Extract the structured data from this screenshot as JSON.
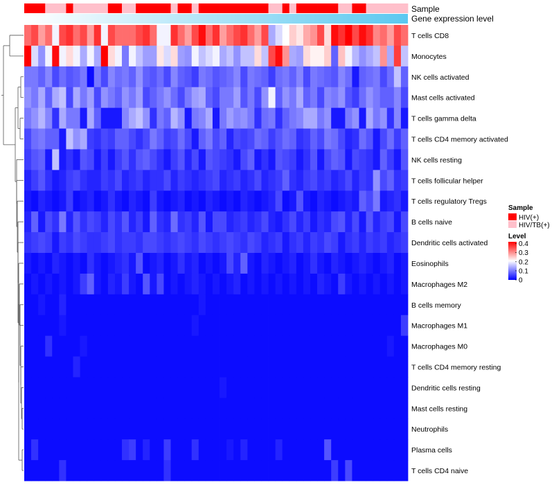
{
  "chart_data": {
    "type": "heatmap",
    "title": "",
    "annotation_rows": [
      {
        "name": "Sample"
      },
      {
        "name": "Gene expression level"
      }
    ],
    "sample_groups": [
      "HIV(+)",
      "HIV(+)",
      "HIV(+)",
      "HIV/TB(+)",
      "HIV/TB(+)",
      "HIV/TB(+)",
      "HIV(+)",
      "HIV/TB(+)",
      "HIV/TB(+)",
      "HIV/TB(+)",
      "HIV/TB(+)",
      "HIV/TB(+)",
      "HIV(+)",
      "HIV(+)",
      "HIV/TB(+)",
      "HIV/TB(+)",
      "HIV(+)",
      "HIV(+)",
      "HIV(+)",
      "HIV(+)",
      "HIV(+)",
      "HIV/TB(+)",
      "HIV(+)",
      "HIV(+)",
      "HIV/TB(+)",
      "HIV(+)",
      "HIV(+)",
      "HIV(+)",
      "HIV(+)",
      "HIV(+)",
      "HIV(+)",
      "HIV(+)",
      "HIV(+)",
      "HIV(+)",
      "HIV(+)",
      "HIV/TB(+)",
      "HIV/TB(+)",
      "HIV(+)",
      "HIV/TB(+)",
      "HIV(+)",
      "HIV(+)",
      "HIV(+)",
      "HIV(+)",
      "HIV(+)",
      "HIV(+)",
      "HIV/TB(+)",
      "HIV/TB(+)",
      "HIV(+)",
      "HIV(+)",
      "HIV/TB(+)",
      "HIV/TB(+)",
      "HIV/TB(+)",
      "HIV/TB(+)",
      "HIV/TB(+)",
      "HIV/TB(+)"
    ],
    "rows": [
      "T cells CD8",
      "Monocytes",
      "NK cells activated",
      "Mast cells activated",
      "T cells gamma delta",
      "T cells CD4 memory activated",
      "NK cells resting",
      "T cells follicular helper",
      "T cells regulatory  Tregs",
      "B cells naive",
      "Dendritic cells activated",
      "Eosinophils",
      "Macrophages M2",
      "B cells memory",
      "Macrophages M1",
      "Macrophages M0",
      "T cells CD4 memory resting",
      "Dendritic cells resting",
      "Mast cells resting",
      "Neutrophils",
      "Plasma cells",
      "T cells CD4 naive"
    ],
    "values": [
      [
        0.33,
        0.36,
        0.29,
        0.33,
        0.2,
        0.36,
        0.38,
        0.33,
        0.36,
        0.29,
        0.38,
        0.2,
        0.36,
        0.33,
        0.33,
        0.33,
        0.36,
        0.38,
        0.33,
        0.2,
        0.2,
        0.38,
        0.33,
        0.29,
        0.36,
        0.41,
        0.33,
        0.38,
        0.29,
        0.33,
        0.36,
        0.38,
        0.33,
        0.29,
        0.36,
        0.14,
        0.18,
        0.21,
        0.25,
        0.23,
        0.28,
        0.3,
        0.36,
        0.24,
        0.41,
        0.38,
        0.42,
        0.36,
        0.41,
        0.38,
        0.31,
        0.33,
        0.29,
        0.36,
        0.33
      ],
      [
        0.42,
        0.18,
        0.12,
        0.2,
        0.41,
        0.2,
        0.24,
        0.2,
        0.14,
        0.2,
        0.14,
        0.42,
        0.24,
        0.2,
        0.1,
        0.2,
        0.16,
        0.13,
        0.13,
        0.23,
        0.18,
        0.24,
        0.13,
        0.12,
        0.2,
        0.16,
        0.18,
        0.2,
        0.14,
        0.16,
        0.12,
        0.16,
        0.16,
        0.24,
        0.16,
        0.36,
        0.41,
        0.3,
        0.14,
        0.13,
        0.24,
        0.22,
        0.22,
        0.25,
        0.08,
        0.26,
        0.2,
        0.15,
        0.12,
        0.14,
        0.16,
        0.3,
        0.14,
        0.37,
        0.16
      ],
      [
        0.1,
        0.1,
        0.08,
        0.11,
        0.06,
        0.09,
        0.07,
        0.08,
        0.1,
        0.01,
        0.1,
        0.06,
        0.11,
        0.09,
        0.1,
        0.08,
        0.12,
        0.08,
        0.07,
        0.09,
        0.06,
        0.11,
        0.08,
        0.07,
        0.05,
        0.1,
        0.09,
        0.07,
        0.08,
        0.09,
        0.11,
        0.06,
        0.1,
        0.09,
        0.08,
        0.05,
        0.09,
        0.1,
        0.08,
        0.11,
        0.06,
        0.1,
        0.09,
        0.08,
        0.07,
        0.11,
        0.09,
        0.02,
        0.08,
        0.09,
        0.1,
        0.06,
        0.09,
        0.16,
        0.08
      ],
      [
        0.12,
        0.1,
        0.14,
        0.08,
        0.14,
        0.16,
        0.06,
        0.14,
        0.1,
        0.13,
        0.06,
        0.12,
        0.1,
        0.08,
        0.12,
        0.1,
        0.13,
        0.06,
        0.08,
        0.1,
        0.12,
        0.09,
        0.06,
        0.1,
        0.13,
        0.14,
        0.08,
        0.06,
        0.1,
        0.1,
        0.13,
        0.07,
        0.1,
        0.06,
        0.12,
        0.2,
        0.08,
        0.12,
        0.1,
        0.14,
        0.08,
        0.1,
        0.06,
        0.11,
        0.1,
        0.12,
        0.07,
        0.05,
        0.09,
        0.12,
        0.1,
        0.08,
        0.08,
        0.11,
        0.06
      ],
      [
        0.1,
        0.12,
        0.15,
        0.11,
        0.04,
        0.14,
        0.1,
        0.1,
        0.02,
        0.14,
        0.08,
        0.02,
        0.02,
        0.02,
        0.11,
        0.14,
        0.16,
        0.12,
        0.04,
        0.1,
        0.08,
        0.15,
        0.12,
        0.02,
        0.1,
        0.11,
        0.14,
        0.02,
        0.1,
        0.13,
        0.11,
        0.12,
        0.1,
        0.04,
        0.09,
        0.1,
        0.04,
        0.08,
        0.1,
        0.11,
        0.14,
        0.14,
        0.1,
        0.12,
        0.02,
        0.02,
        0.1,
        0.12,
        0.02,
        0.14,
        0.1,
        0.12,
        0.04,
        0.11,
        0.02
      ],
      [
        0.06,
        0.09,
        0.1,
        0.08,
        0.08,
        0.02,
        0.16,
        0.12,
        0.14,
        0.05,
        0.04,
        0.06,
        0.05,
        0.08,
        0.08,
        0.06,
        0.04,
        0.06,
        0.1,
        0.08,
        0.05,
        0.06,
        0.09,
        0.06,
        0.02,
        0.08,
        0.1,
        0.06,
        0.08,
        0.03,
        0.06,
        0.05,
        0.06,
        0.09,
        0.08,
        0.05,
        0.07,
        0.09,
        0.08,
        0.04,
        0.05,
        0.08,
        0.06,
        0.1,
        0.09,
        0.06,
        0.03,
        0.04,
        0.09,
        0.07,
        0.02,
        0.06,
        0.09,
        0.05,
        0.08
      ],
      [
        0.05,
        0.07,
        0.08,
        0.02,
        0.16,
        0.02,
        0.04,
        0.02,
        0.07,
        0.06,
        0.02,
        0.05,
        0.02,
        0.05,
        0.07,
        0.04,
        0.07,
        0.08,
        0.06,
        0.04,
        0.02,
        0.05,
        0.07,
        0.03,
        0.06,
        0.02,
        0.07,
        0.06,
        0.05,
        0.04,
        0.02,
        0.06,
        0.08,
        0.02,
        0.04,
        0.02,
        0.07,
        0.06,
        0.05,
        0.02,
        0.04,
        0.07,
        0.02,
        0.06,
        0.08,
        0.07,
        0.02,
        0.06,
        0.05,
        0.04,
        0.02,
        0.08,
        0.05,
        0.02,
        0.07
      ],
      [
        0.03,
        0.05,
        0.07,
        0.04,
        0.02,
        0.03,
        0.05,
        0.06,
        0.04,
        0.03,
        0.03,
        0.05,
        0.04,
        0.06,
        0.03,
        0.04,
        0.05,
        0.03,
        0.04,
        0.04,
        0.06,
        0.03,
        0.05,
        0.04,
        0.03,
        0.04,
        0.05,
        0.06,
        0.03,
        0.04,
        0.05,
        0.03,
        0.04,
        0.06,
        0.03,
        0.04,
        0.05,
        0.08,
        0.04,
        0.03,
        0.05,
        0.06,
        0.04,
        0.05,
        0.03,
        0.04,
        0.06,
        0.03,
        0.05,
        0.04,
        0.12,
        0.06,
        0.08,
        0.04,
        0.05
      ],
      [
        0.02,
        0.01,
        0.03,
        0.02,
        0.01,
        0.02,
        0.05,
        0.01,
        0.02,
        0.03,
        0.01,
        0.02,
        0.04,
        0.02,
        0.01,
        0.03,
        0.02,
        0.01,
        0.05,
        0.02,
        0.01,
        0.02,
        0.03,
        0.01,
        0.02,
        0.01,
        0.03,
        0.02,
        0.01,
        0.02,
        0.01,
        0.03,
        0.02,
        0.01,
        0.02,
        0.03,
        0.06,
        0.01,
        0.02,
        0.07,
        0.02,
        0.01,
        0.03,
        0.02,
        0.01,
        0.02,
        0.03,
        0.02,
        0.08,
        0.06,
        0.1,
        0.02,
        0.03,
        0.04,
        0.02
      ],
      [
        0.03,
        0.08,
        0.02,
        0.06,
        0.04,
        0.1,
        0.03,
        0.07,
        0.04,
        0.06,
        0.05,
        0.03,
        0.06,
        0.04,
        0.07,
        0.03,
        0.05,
        0.02,
        0.08,
        0.04,
        0.03,
        0.09,
        0.04,
        0.05,
        0.03,
        0.07,
        0.02,
        0.06,
        0.06,
        0.03,
        0.04,
        0.05,
        0.03,
        0.04,
        0.06,
        0.03,
        0.02,
        0.04,
        0.06,
        0.03,
        0.05,
        0.02,
        0.04,
        0.03,
        0.06,
        0.07,
        0.03,
        0.06,
        0.02,
        0.07,
        0.03,
        0.05,
        0.06,
        0.02,
        0.06
      ],
      [
        0.04,
        0.05,
        0.06,
        0.05,
        0.02,
        0.05,
        0.04,
        0.06,
        0.05,
        0.04,
        0.04,
        0.05,
        0.06,
        0.04,
        0.05,
        0.05,
        0.04,
        0.06,
        0.06,
        0.05,
        0.04,
        0.05,
        0.06,
        0.05,
        0.04,
        0.06,
        0.05,
        0.04,
        0.05,
        0.06,
        0.05,
        0.04,
        0.06,
        0.05,
        0.03,
        0.04,
        0.05,
        0.02,
        0.04,
        0.05,
        0.03,
        0.05,
        0.04,
        0.06,
        0.05,
        0.02,
        0.04,
        0.05,
        0.03,
        0.05,
        0.04,
        0.05,
        0.03,
        0.04,
        0.05
      ],
      [
        0.02,
        0.01,
        0.02,
        0.01,
        0.03,
        0.02,
        0.01,
        0.02,
        0.01,
        0.04,
        0.02,
        0.01,
        0.02,
        0.03,
        0.04,
        0.02,
        0.07,
        0.01,
        0.02,
        0.03,
        0.01,
        0.02,
        0.04,
        0.02,
        0.03,
        0.01,
        0.02,
        0.01,
        0.02,
        0.06,
        0.03,
        0.08,
        0.02,
        0.01,
        0.03,
        0.02,
        0.01,
        0.02,
        0.03,
        0.01,
        0.02,
        0.04,
        0.02,
        0.01,
        0.03,
        0.02,
        0.01,
        0.02,
        0.03,
        0.02,
        0.01,
        0.02,
        0.03,
        0.01,
        0.02
      ],
      [
        0.01,
        0.02,
        0.01,
        0.02,
        0.01,
        0.02,
        0.01,
        0.02,
        0.05,
        0.08,
        0.02,
        0.01,
        0.03,
        0.02,
        0.05,
        0.02,
        0.01,
        0.07,
        0.02,
        0.06,
        0.01,
        0.02,
        0.01,
        0.02,
        0.03,
        0.02,
        0.01,
        0.02,
        0.01,
        0.02,
        0.03,
        0.01,
        0.02,
        0.01,
        0.02,
        0.01,
        0.02,
        0.01,
        0.02,
        0.01,
        0.02,
        0.01,
        0.03,
        0.02,
        0.01,
        0.05,
        0.02,
        0.01,
        0.02,
        0.01,
        0.02,
        0.01,
        0.02,
        0.01,
        0.02
      ],
      [
        0.01,
        0.01,
        0.02,
        0.01,
        0.01,
        0.03,
        0.01,
        0.01,
        0.01,
        0.01,
        0.01,
        0.01,
        0.01,
        0.01,
        0.01,
        0.01,
        0.01,
        0.01,
        0.01,
        0.01,
        0.01,
        0.01,
        0.01,
        0.01,
        0.01,
        0.02,
        0.01,
        0.01,
        0.01,
        0.01,
        0.01,
        0.01,
        0.01,
        0.01,
        0.01,
        0.01,
        0.01,
        0.01,
        0.01,
        0.01,
        0.01,
        0.01,
        0.01,
        0.01,
        0.01,
        0.01,
        0.01,
        0.01,
        0.01,
        0.01,
        0.01,
        0.01,
        0.01,
        0.01,
        0.01
      ],
      [
        0.01,
        0.01,
        0.01,
        0.01,
        0.01,
        0.02,
        0.01,
        0.01,
        0.01,
        0.01,
        0.01,
        0.01,
        0.01,
        0.01,
        0.01,
        0.01,
        0.01,
        0.01,
        0.01,
        0.01,
        0.01,
        0.01,
        0.01,
        0.01,
        0.02,
        0.01,
        0.01,
        0.01,
        0.01,
        0.01,
        0.01,
        0.01,
        0.01,
        0.01,
        0.01,
        0.01,
        0.01,
        0.01,
        0.01,
        0.01,
        0.01,
        0.01,
        0.01,
        0.01,
        0.01,
        0.01,
        0.01,
        0.01,
        0.01,
        0.01,
        0.01,
        0.01,
        0.01,
        0.01,
        0.05
      ],
      [
        0.01,
        0.01,
        0.01,
        0.04,
        0.01,
        0.01,
        0.01,
        0.01,
        0.02,
        0.01,
        0.01,
        0.01,
        0.01,
        0.01,
        0.01,
        0.01,
        0.01,
        0.01,
        0.01,
        0.01,
        0.01,
        0.01,
        0.01,
        0.01,
        0.01,
        0.01,
        0.01,
        0.01,
        0.01,
        0.01,
        0.01,
        0.01,
        0.01,
        0.01,
        0.01,
        0.01,
        0.01,
        0.01,
        0.01,
        0.01,
        0.01,
        0.01,
        0.01,
        0.01,
        0.01,
        0.01,
        0.01,
        0.01,
        0.01,
        0.01,
        0.01,
        0.01,
        0.02,
        0.01,
        0.01
      ],
      [
        0.01,
        0.01,
        0.01,
        0.01,
        0.01,
        0.01,
        0.01,
        0.03,
        0.01,
        0.01,
        0.01,
        0.01,
        0.01,
        0.01,
        0.01,
        0.01,
        0.01,
        0.01,
        0.01,
        0.01,
        0.01,
        0.01,
        0.01,
        0.01,
        0.01,
        0.01,
        0.01,
        0.01,
        0.01,
        0.01,
        0.01,
        0.01,
        0.01,
        0.01,
        0.01,
        0.01,
        0.01,
        0.01,
        0.01,
        0.01,
        0.01,
        0.01,
        0.01,
        0.01,
        0.01,
        0.01,
        0.01,
        0.01,
        0.01,
        0.01,
        0.01,
        0.01,
        0.01,
        0.01,
        0.01
      ],
      [
        0.01,
        0.01,
        0.01,
        0.01,
        0.01,
        0.01,
        0.01,
        0.01,
        0.01,
        0.01,
        0.01,
        0.01,
        0.01,
        0.01,
        0.01,
        0.01,
        0.01,
        0.01,
        0.01,
        0.01,
        0.01,
        0.01,
        0.01,
        0.01,
        0.01,
        0.01,
        0.01,
        0.01,
        0.02,
        0.01,
        0.01,
        0.01,
        0.01,
        0.01,
        0.01,
        0.01,
        0.01,
        0.01,
        0.01,
        0.01,
        0.01,
        0.01,
        0.01,
        0.01,
        0.01,
        0.01,
        0.01,
        0.01,
        0.01,
        0.01,
        0.01,
        0.01,
        0.01,
        0.01,
        0.01
      ],
      [
        0.01,
        0.01,
        0.01,
        0.01,
        0.01,
        0.01,
        0.01,
        0.01,
        0.01,
        0.01,
        0.01,
        0.01,
        0.01,
        0.01,
        0.01,
        0.01,
        0.01,
        0.01,
        0.01,
        0.01,
        0.01,
        0.01,
        0.01,
        0.01,
        0.01,
        0.01,
        0.01,
        0.01,
        0.01,
        0.01,
        0.01,
        0.01,
        0.01,
        0.01,
        0.01,
        0.01,
        0.01,
        0.01,
        0.01,
        0.01,
        0.01,
        0.01,
        0.01,
        0.01,
        0.01,
        0.01,
        0.01,
        0.01,
        0.01,
        0.01,
        0.01,
        0.01,
        0.01,
        0.01,
        0.01
      ],
      [
        0.01,
        0.01,
        0.01,
        0.01,
        0.01,
        0.01,
        0.01,
        0.01,
        0.01,
        0.01,
        0.01,
        0.01,
        0.01,
        0.01,
        0.01,
        0.01,
        0.01,
        0.01,
        0.01,
        0.01,
        0.01,
        0.01,
        0.01,
        0.01,
        0.01,
        0.01,
        0.01,
        0.01,
        0.01,
        0.01,
        0.01,
        0.01,
        0.01,
        0.01,
        0.01,
        0.01,
        0.01,
        0.01,
        0.01,
        0.01,
        0.01,
        0.01,
        0.01,
        0.01,
        0.01,
        0.01,
        0.01,
        0.01,
        0.01,
        0.01,
        0.01,
        0.01,
        0.01,
        0.01,
        0.01
      ],
      [
        0.01,
        0.04,
        0.01,
        0.01,
        0.01,
        0.01,
        0.01,
        0.01,
        0.01,
        0.01,
        0.01,
        0.01,
        0.01,
        0.01,
        0.04,
        0.05,
        0.01,
        0.03,
        0.01,
        0.01,
        0.05,
        0.01,
        0.01,
        0.01,
        0.04,
        0.01,
        0.01,
        0.01,
        0.01,
        0.02,
        0.01,
        0.03,
        0.01,
        0.01,
        0.01,
        0.01,
        0.03,
        0.01,
        0.01,
        0.01,
        0.01,
        0.01,
        0.01,
        0.07,
        0.01,
        0.01,
        0.01,
        0.01,
        0.01,
        0.01,
        0.01,
        0.01,
        0.01,
        0.01,
        0.01
      ],
      [
        0.01,
        0.01,
        0.01,
        0.01,
        0.01,
        0.04,
        0.01,
        0.01,
        0.01,
        0.01,
        0.01,
        0.01,
        0.01,
        0.01,
        0.01,
        0.01,
        0.01,
        0.01,
        0.01,
        0.01,
        0.04,
        0.01,
        0.01,
        0.01,
        0.01,
        0.01,
        0.01,
        0.01,
        0.01,
        0.01,
        0.01,
        0.01,
        0.01,
        0.01,
        0.01,
        0.01,
        0.01,
        0.01,
        0.01,
        0.01,
        0.01,
        0.01,
        0.01,
        0.01,
        0.05,
        0.01,
        0.06,
        0.01,
        0.01,
        0.01,
        0.01,
        0.01,
        0.01,
        0.01,
        0.01
      ]
    ],
    "color_scale": {
      "min": 0,
      "max": 0.42,
      "low": "#0000FF",
      "mid": "#FFFFFF",
      "high": "#FF0000",
      "mid_value": 0.21
    },
    "sample_colors": {
      "HIV(+)": "#FF0000",
      "HIV/TB(+)": "#FFC0CB"
    },
    "expression_gradient": [
      "#FFFFFF",
      "#5BC8F0"
    ],
    "legend": {
      "sample_title": "Sample",
      "sample_items": [
        "HIV(+)",
        "HIV/TB(+)"
      ],
      "level_title": "Level",
      "level_ticks": [
        0.4,
        0.3,
        0.2,
        0.1,
        0
      ]
    },
    "dendrogram": true,
    "legend_position": "right"
  }
}
